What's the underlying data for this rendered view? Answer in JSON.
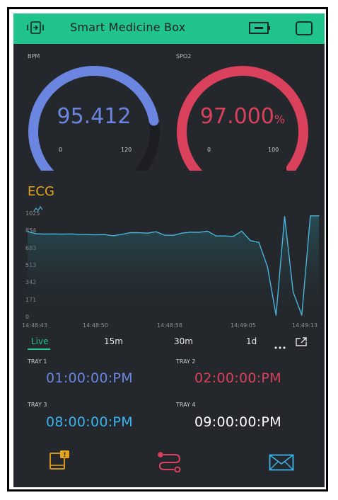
{
  "app": {
    "title": "Smart Medicine Box"
  },
  "colors": {
    "header": "#21c38c",
    "background": "#24272b",
    "bpm": "#6b86e0",
    "spo2": "#d9415c",
    "ecg_title": "#e6a31f",
    "ecg_line": "#4ab3d9",
    "tray1": "#6b86e0",
    "tray2": "#d9415c",
    "tray3": "#3ab4ee",
    "tray4": "#ffffff"
  },
  "header": {
    "left_icon": "device-swap-icon",
    "battery_icon": "battery-icon",
    "right_icon": "square-icon"
  },
  "gauges": {
    "bpm": {
      "label": "BPM",
      "value": "95.412",
      "min": "0",
      "max": "120",
      "fraction": 0.795
    },
    "spo2": {
      "label": "SPO2",
      "value": "97.000",
      "unit": "%",
      "min": "0",
      "max": "100",
      "fraction": 0.97
    }
  },
  "ecg": {
    "title": "ECG",
    "y_ticks": [
      "1025",
      "854",
      "683",
      "513",
      "342",
      "171",
      "0"
    ],
    "x_ticks": [
      "14:48:43",
      "14:48:50",
      "14:48:58",
      "14:49:05",
      "14:49:13"
    ],
    "range_tabs": [
      "Live",
      "15m",
      "30m",
      "1d"
    ],
    "active_tab": "Live",
    "more_icon": "more-icon",
    "expand_icon": "expand-icon"
  },
  "chart_data": {
    "type": "line",
    "y_range": [
      0,
      1025
    ],
    "x_range_labels": [
      "14:48:43",
      "14:49:13"
    ],
    "series": [
      {
        "values": [
          850,
          828,
          825,
          826,
          824,
          826,
          822,
          820,
          818,
          820,
          808,
          822,
          840,
          838,
          834,
          848,
          814,
          812,
          834,
          844,
          842,
          854,
          806,
          806,
          802,
          854,
          760,
          742,
          500,
          20,
          1000,
          250,
          20,
          1005,
          1005
        ]
      }
    ]
  },
  "trays": [
    {
      "label": "TRAY 1",
      "time": "01:00:00:PM"
    },
    {
      "label": "TRAY 2",
      "time": "02:00:00:PM"
    },
    {
      "label": "TRAY 3",
      "time": "08:00:00:PM"
    },
    {
      "label": "TRAY 4",
      "time": "09:00:00:PM"
    }
  ],
  "bottom_bar": {
    "icons": [
      "tablet-notification-icon",
      "route-icon",
      "mail-icon"
    ]
  }
}
